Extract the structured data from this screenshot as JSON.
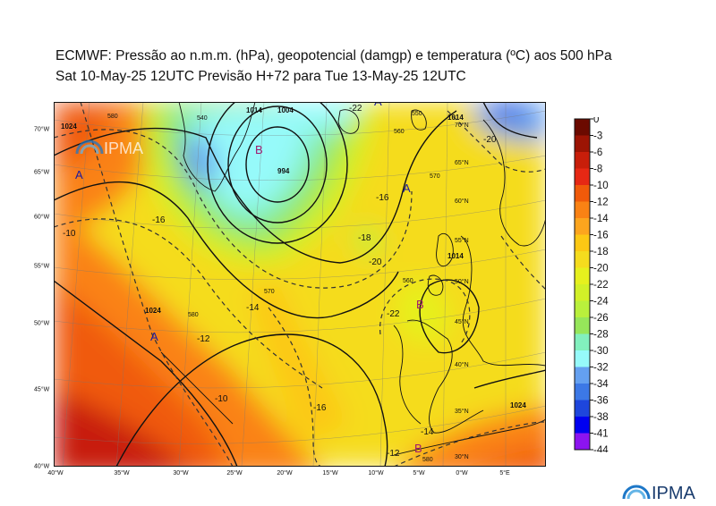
{
  "title_line1": "ECMWF:  Pressão ao n.m.m. (hPa), geopotencial (damgp) e temperatura (ºC) aos 500 hPa",
  "title_line2": "Sat 10-May-25 12UTC Previsão H+72 para Tue 13-May-25 12UTC",
  "logo_text": "IPMA",
  "colorbar": {
    "labels": [
      "0",
      "-3",
      "-6",
      "-8",
      "-10",
      "-12",
      "-14",
      "-16",
      "-18",
      "-20",
      "-22",
      "-24",
      "-26",
      "-28",
      "-30",
      "-32",
      "-34",
      "-36",
      "-38",
      "-41",
      "-44"
    ],
    "colors": [
      "#6b0a00",
      "#9c1404",
      "#c81e0a",
      "#e62814",
      "#f05a0a",
      "#fa8214",
      "#fca51e",
      "#fcc814",
      "#f5dc1e",
      "#e6f01e",
      "#d2f028",
      "#b9f03c",
      "#96e65a",
      "#82f0be",
      "#96fafa",
      "#64a0f0",
      "#3c78e6",
      "#1e46dc",
      "#0000f0",
      "#8c14f0",
      "#f014f0"
    ]
  },
  "lon_labels": [
    "40°W",
    "35°W",
    "30°W",
    "25°W",
    "20°W",
    "15°W",
    "10°W",
    "5°W",
    "0°W",
    "5°E"
  ],
  "lat_labels_left": [
    "70°W",
    "65°W",
    "60°W",
    "55°W",
    "50°W",
    "45°W",
    "40°W"
  ],
  "lat_labels_inner": [
    "50°N",
    "45°N",
    "40°N",
    "35°N",
    "30°N",
    "55°N",
    "60°N",
    "65°N",
    "70°N"
  ],
  "pressure_labels": [
    "1024",
    "1024",
    "1024",
    "1014",
    "1014",
    "1014",
    "1004",
    "994",
    "1014"
  ],
  "geopotential_labels": [
    "580",
    "580",
    "570",
    "570",
    "560",
    "560",
    "550",
    "540",
    "580"
  ],
  "temperature_labels": [
    "-10",
    "-12",
    "-14",
    "-16",
    "-18",
    "-20",
    "-22",
    "-22",
    "-16",
    "-14",
    "-12",
    "-10",
    "-16",
    "-20"
  ],
  "centers": [
    {
      "type": "high",
      "label": "A"
    },
    {
      "type": "high",
      "label": "A"
    },
    {
      "type": "high",
      "label": "A"
    },
    {
      "type": "high",
      "label": "A"
    },
    {
      "type": "low",
      "label": "B"
    },
    {
      "type": "low",
      "label": "B"
    },
    {
      "type": "low",
      "label": "B"
    }
  ]
}
